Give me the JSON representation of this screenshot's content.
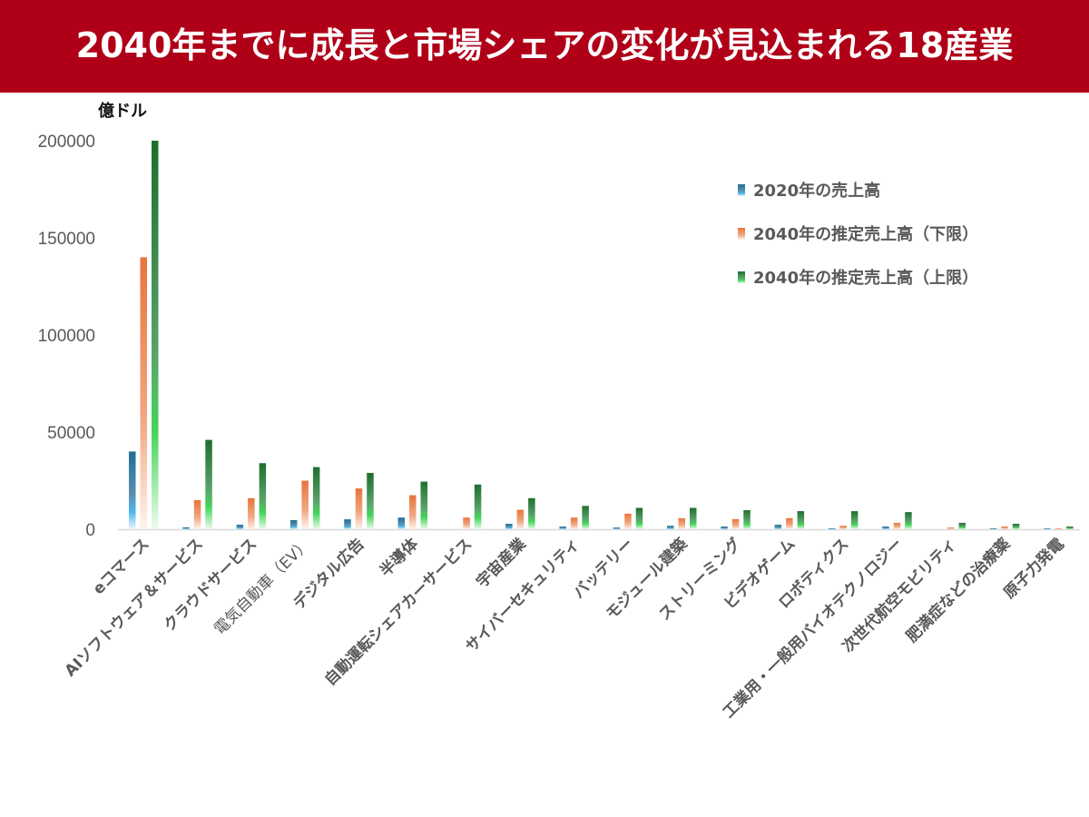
{
  "header": {
    "title": "2040年までに成長と市場シェアの変化が見込まれる18産業"
  },
  "chart_data": {
    "type": "bar",
    "title": "2040年までに成長と市場シェアの変化が見込まれる18産業",
    "ylabel": "億ドル",
    "xlabel": "",
    "ylim": [
      0,
      200000
    ],
    "yticks": [
      0,
      50000,
      100000,
      150000,
      200000
    ],
    "grid": false,
    "legend_position": "top-right",
    "categories": [
      "eコマース",
      "AIソフトウェア＆サービス",
      "クラウドサービス",
      "電気自動車（EV）",
      "デジタル広告",
      "半導体",
      "自動運転シェアカーサービス",
      "宇宙産業",
      "サイバーセキュリティ",
      "バッテリー",
      "モジュール建築",
      "ストリーミング",
      "ビデオゲーム",
      "ロボティクス",
      "工業用・一般用バイオテクノロジー",
      "次世代航空モビリティ",
      "肥満症などの治療薬",
      "原子力発電"
    ],
    "series": [
      {
        "name": "2020年の売上高",
        "color": "#1f6e96",
        "values": [
          40000,
          1000,
          2300,
          4700,
          5100,
          6000,
          0,
          2800,
          1400,
          900,
          1800,
          1400,
          2300,
          500,
          1400,
          0,
          500,
          400
        ]
      },
      {
        "name": "2040年の推定売上高（下限）",
        "color": "#e8743b",
        "values": [
          140000,
          15000,
          16000,
          25000,
          21000,
          17500,
          6000,
          10000,
          6000,
          8000,
          5700,
          5200,
          5700,
          1800,
          3300,
          900,
          1400,
          500
        ]
      },
      {
        "name": "2040年の推定売上高（上限）",
        "color": "#1e6e2e",
        "values": [
          200000,
          46000,
          34000,
          32000,
          29000,
          24500,
          23000,
          16000,
          12000,
          11000,
          11000,
          9800,
          9300,
          9300,
          8800,
          3300,
          2800,
          1400
        ]
      }
    ]
  }
}
